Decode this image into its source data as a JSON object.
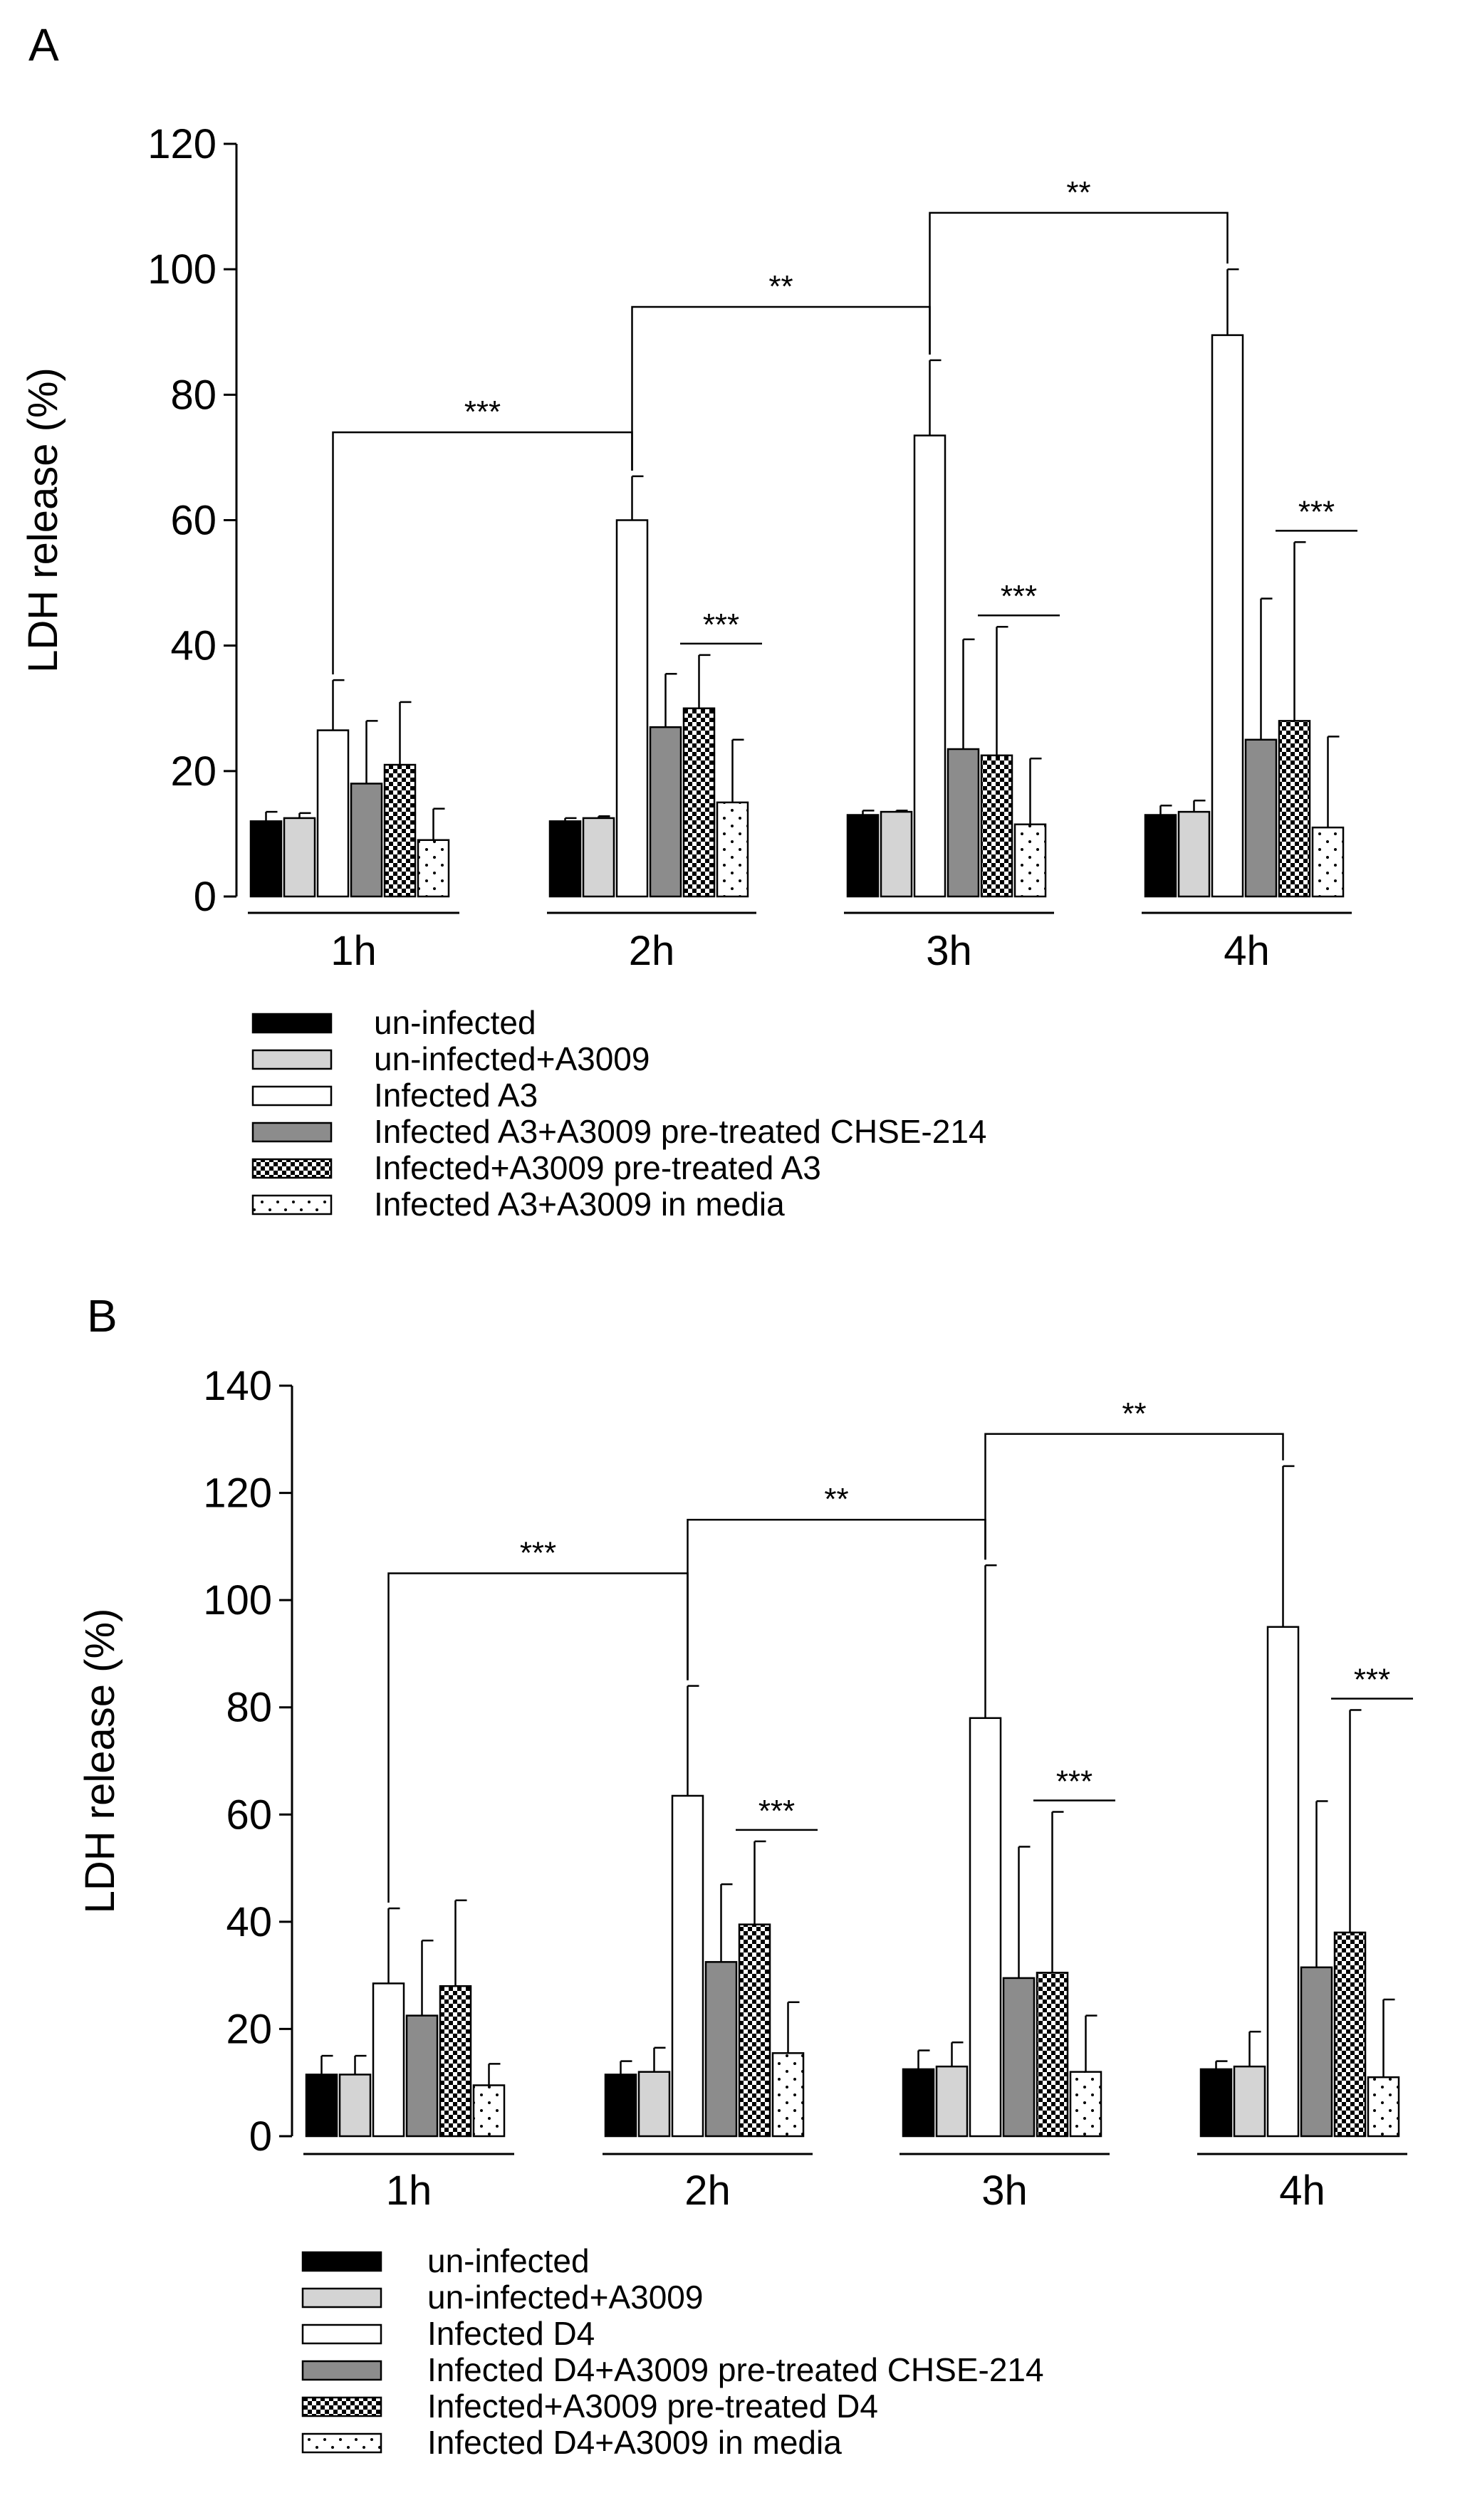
{
  "chart_data": [
    {
      "panel_label": "A",
      "type": "bar",
      "ylabel": "LDH release (%)",
      "ylim": [
        0,
        120
      ],
      "yticks": [
        0,
        20,
        40,
        60,
        80,
        100,
        120
      ],
      "categories": [
        "1h",
        "2h",
        "3h",
        "4h"
      ],
      "series": [
        {
          "name": "un-infected",
          "pattern": "solid-black",
          "values": [
            12,
            12,
            13,
            13
          ],
          "errors": [
            1.5,
            0.5,
            0.7,
            1.5
          ]
        },
        {
          "name": "un-infected+A3009",
          "pattern": "light-gray",
          "values": [
            12.5,
            12.5,
            13.5,
            13.5
          ],
          "errors": [
            0.8,
            0.3,
            0.2,
            1.8
          ]
        },
        {
          "name": "Infected A3",
          "pattern": "white",
          "values": [
            26.5,
            60,
            73.5,
            89.5
          ],
          "errors": [
            8,
            7,
            12,
            10.5
          ]
        },
        {
          "name": "Infected A3+A3009 pre-treated CHSE-214",
          "pattern": "dark-gray",
          "values": [
            18,
            27,
            23.5,
            25
          ],
          "errors": [
            10,
            8.5,
            17.5,
            22.5
          ]
        },
        {
          "name": "Infected+A3009 pre-treated A3",
          "pattern": "checker",
          "values": [
            21,
            30,
            22.5,
            28
          ],
          "errors": [
            10,
            8.5,
            20.5,
            28.5
          ]
        },
        {
          "name": "Infected A3+A3009 in media",
          "pattern": "dots",
          "values": [
            9,
            15,
            11.5,
            11
          ],
          "errors": [
            5,
            10,
            10.5,
            14.5
          ]
        }
      ],
      "brackets": [
        {
          "from": 0,
          "to": 1,
          "label": "***",
          "height": 74
        },
        {
          "from": 1,
          "to": 2,
          "label": "**",
          "height": 94
        },
        {
          "from": 2,
          "to": 3,
          "label": "**",
          "height": 109
        }
      ],
      "stars": [
        {
          "group": 1,
          "label": "***"
        },
        {
          "group": 2,
          "label": "***"
        },
        {
          "group": 3,
          "label": "***"
        }
      ]
    },
    {
      "panel_label": "B",
      "type": "bar",
      "ylabel": "LDH release (%)",
      "ylim": [
        0,
        140
      ],
      "yticks": [
        0,
        20,
        40,
        60,
        80,
        100,
        120,
        140
      ],
      "categories": [
        "1h",
        "2h",
        "3h",
        "4h"
      ],
      "series": [
        {
          "name": "un-infected",
          "pattern": "solid-black",
          "values": [
            11.5,
            11.5,
            12.5,
            12.5
          ],
          "errors": [
            3.5,
            2.5,
            3.5,
            1.5
          ]
        },
        {
          "name": "un-infected+A3009",
          "pattern": "light-gray",
          "values": [
            11.5,
            12,
            13,
            13
          ],
          "errors": [
            3.5,
            4.5,
            4.5,
            6.5
          ]
        },
        {
          "name": "Infected D4",
          "pattern": "white",
          "values": [
            28.5,
            63.5,
            78,
            95
          ],
          "errors": [
            14,
            20.5,
            28.5,
            30
          ]
        },
        {
          "name": "Infected D4+A3009 pre-treated CHSE-214",
          "pattern": "dark-gray",
          "values": [
            22.5,
            32.5,
            29.5,
            31.5
          ],
          "errors": [
            14,
            14.5,
            24.5,
            31
          ]
        },
        {
          "name": "Infected+A3009 pre-treated D4",
          "pattern": "checker",
          "values": [
            28,
            39.5,
            30.5,
            38
          ],
          "errors": [
            16,
            15.5,
            30,
            41.5
          ]
        },
        {
          "name": "Infected D4+A3009 in media",
          "pattern": "dots",
          "values": [
            9.5,
            15.5,
            12,
            11
          ],
          "errors": [
            4,
            9.5,
            10.5,
            14.5
          ]
        }
      ],
      "brackets": [
        {
          "from": 0,
          "to": 1,
          "label": "***",
          "height": 105
        },
        {
          "from": 1,
          "to": 2,
          "label": "**",
          "height": 115
        },
        {
          "from": 2,
          "to": 3,
          "label": "**",
          "height": 131
        }
      ],
      "stars": [
        {
          "group": 1,
          "label": "***"
        },
        {
          "group": 2,
          "label": "***"
        },
        {
          "group": 3,
          "label": "***"
        }
      ]
    }
  ]
}
